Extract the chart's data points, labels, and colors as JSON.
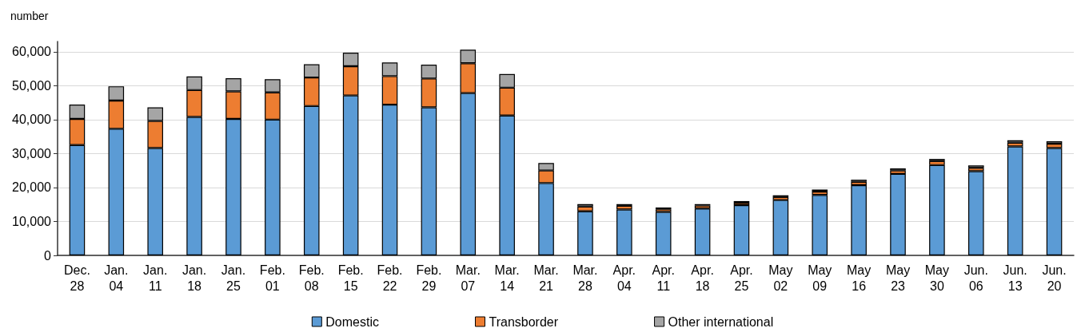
{
  "chart_data": {
    "type": "bar",
    "ylabel": "number",
    "stacked": true,
    "categories": [
      "Dec.\n28",
      "Jan.\n04",
      "Jan.\n11",
      "Jan.\n18",
      "Jan.\n25",
      "Feb.\n01",
      "Feb.\n08",
      "Feb.\n15",
      "Feb.\n22",
      "Feb.\n29",
      "Mar.\n07",
      "Mar.\n14",
      "Mar.\n21",
      "Mar.\n28",
      "Apr.\n04",
      "Apr.\n11",
      "Apr.\n18",
      "Apr.\n25",
      "May\n02",
      "May\n09",
      "May\n16",
      "May\n23",
      "May\n30",
      "Jun.\n06",
      "Jun.\n13",
      "Jun.\n20"
    ],
    "series": [
      {
        "name": "Domestic",
        "color": "#5b9bd5",
        "values": [
          32500,
          37300,
          31600,
          40800,
          40200,
          40000,
          44000,
          47100,
          44400,
          43600,
          47800,
          41200,
          21300,
          13000,
          13500,
          12800,
          13800,
          14800,
          16300,
          17800,
          20700,
          24000,
          26600,
          24800,
          32100,
          31600
        ]
      },
      {
        "name": "Transborder",
        "color": "#ed7d31",
        "values": [
          7700,
          8300,
          8000,
          7900,
          8100,
          8000,
          8400,
          8600,
          8400,
          8500,
          8800,
          8200,
          3700,
          1400,
          1100,
          800,
          900,
          700,
          900,
          1000,
          1000,
          1000,
          1200,
          1000,
          1100,
          1300
        ]
      },
      {
        "name": "Other international",
        "color": "#a5a5a5",
        "values": [
          4200,
          4200,
          4000,
          4000,
          3900,
          3900,
          3900,
          4000,
          4000,
          4100,
          4000,
          4000,
          2200,
          700,
          500,
          500,
          400,
          500,
          500,
          600,
          600,
          600,
          600,
          700,
          700,
          700
        ]
      }
    ],
    "ylim": [
      0,
      63000
    ],
    "yticks": [
      0,
      {
        "value": 10000,
        "label": "10,000"
      },
      {
        "value": 20000,
        "label": "20,000"
      },
      {
        "value": 30000,
        "label": "30,000"
      },
      {
        "value": 40000,
        "label": "40,000"
      },
      {
        "value": 50000,
        "label": "50,000"
      },
      {
        "value": 60000,
        "label": "60,000"
      }
    ],
    "grid": "y",
    "legend": "bottom"
  }
}
